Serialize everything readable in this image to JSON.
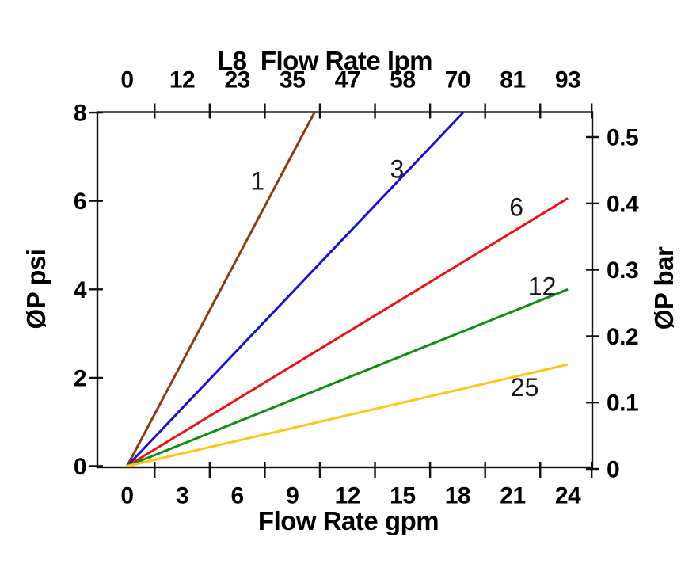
{
  "chart_data": {
    "type": "line",
    "title_top": "L8  Flow Rate lpm",
    "xlabel_bottom": "Flow Rate gpm",
    "ylabel_left": "ØP psi",
    "ylabel_right": "ØP bar",
    "x_bottom": {
      "unit": "gpm",
      "label_values": [
        0,
        3,
        6,
        9,
        12,
        15,
        18,
        21,
        24
      ],
      "tick_values": [
        1.5,
        4.5,
        7.5,
        10.5,
        13.5,
        16.5,
        19.5,
        22.5,
        25.3
      ],
      "range": [
        -1.6,
        25.3
      ]
    },
    "x_top": {
      "unit": "lpm",
      "labels": [
        "0",
        "12",
        "23",
        "35",
        "47",
        "58",
        "70",
        "81",
        "93"
      ]
    },
    "y_left": {
      "unit": "psi",
      "tick_values": [
        0,
        2,
        4,
        6,
        8
      ],
      "range": [
        0,
        8
      ]
    },
    "y_right": {
      "unit": "bar",
      "tick_values": [
        0,
        0.1,
        0.2,
        0.3,
        0.4,
        0.5
      ]
    },
    "series": [
      {
        "name": "1",
        "color": "#8E3A0D",
        "x_gpm": [
          0,
          10.2
        ],
        "y_psi": [
          0,
          8
        ],
        "label_at": [
          7.1,
          6.45
        ]
      },
      {
        "name": "3",
        "color": "#1414CE",
        "x_gpm": [
          0,
          18.3
        ],
        "y_psi": [
          0,
          8
        ],
        "label_at": [
          14.7,
          6.72
        ]
      },
      {
        "name": "6",
        "color": "#EE1111",
        "x_gpm": [
          0,
          24
        ],
        "y_psi": [
          0,
          6.06
        ],
        "label_at": [
          21.2,
          5.86
        ]
      },
      {
        "name": "12",
        "color": "#0F8F0F",
        "x_gpm": [
          0,
          24
        ],
        "y_psi": [
          0,
          4.0
        ],
        "label_at": [
          22.6,
          4.07
        ]
      },
      {
        "name": "25",
        "color": "#FFC613",
        "x_gpm": [
          0,
          24
        ],
        "y_psi": [
          0,
          2.3
        ],
        "label_at": [
          21.65,
          1.78
        ]
      }
    ],
    "axis_color": "#111111",
    "text_color": "#000000",
    "background": "#ffffff"
  }
}
